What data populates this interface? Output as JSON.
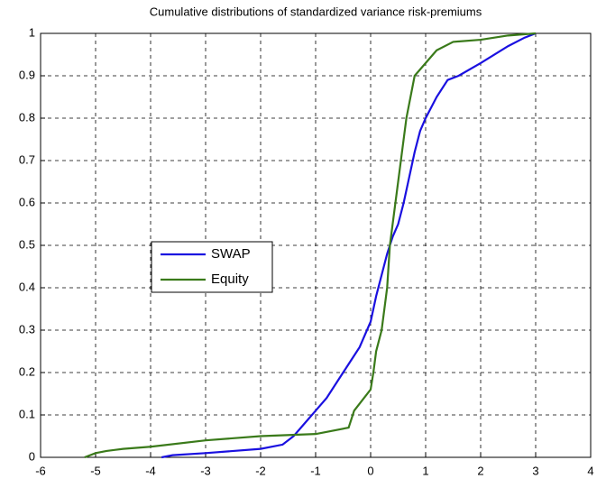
{
  "chart_data": {
    "type": "line",
    "title": "Cumulative distributions of standardized variance risk-premiums",
    "xlim": [
      -6,
      4
    ],
    "xticks": [
      -6,
      -5,
      -4,
      -3,
      -2,
      -1,
      0,
      1,
      2,
      3,
      4
    ],
    "ylim": [
      0,
      1
    ],
    "yticks": [
      0,
      0.1,
      0.2,
      0.3,
      0.4,
      0.5,
      0.6,
      0.7,
      0.8,
      0.9,
      1
    ],
    "grid": true,
    "legend": "center-left",
    "series": [
      {
        "name": "SWAP",
        "color": "#1a10e0",
        "x": [
          -3.8,
          -3.6,
          -3,
          -2,
          -1.6,
          -1.4,
          -1.2,
          -1,
          -0.8,
          -0.6,
          -0.4,
          -0.2,
          0,
          0.1,
          0.2,
          0.3,
          0.4,
          0.5,
          0.6,
          0.7,
          0.8,
          0.9,
          1,
          1.2,
          1.4,
          1.6,
          2,
          2.5,
          2.8,
          3
        ],
        "values": [
          0,
          0.005,
          0.01,
          0.02,
          0.03,
          0.05,
          0.08,
          0.11,
          0.14,
          0.18,
          0.22,
          0.26,
          0.32,
          0.38,
          0.43,
          0.48,
          0.52,
          0.55,
          0.6,
          0.66,
          0.72,
          0.77,
          0.8,
          0.85,
          0.89,
          0.9,
          0.93,
          0.97,
          0.99,
          1
        ]
      },
      {
        "name": "Equity",
        "color": "#3a7a1a",
        "x": [
          -5.2,
          -5,
          -4.8,
          -4.5,
          -4,
          -3,
          -2,
          -1,
          -0.4,
          -0.3,
          0,
          0.05,
          0.1,
          0.2,
          0.3,
          0.35,
          0.45,
          0.55,
          0.65,
          0.8,
          1,
          1.2,
          1.5,
          2,
          2.5,
          3
        ],
        "values": [
          0,
          0.01,
          0.015,
          0.02,
          0.025,
          0.04,
          0.05,
          0.055,
          0.07,
          0.11,
          0.16,
          0.2,
          0.25,
          0.3,
          0.4,
          0.5,
          0.6,
          0.7,
          0.8,
          0.9,
          0.93,
          0.96,
          0.98,
          0.985,
          0.995,
          1
        ]
      }
    ]
  }
}
